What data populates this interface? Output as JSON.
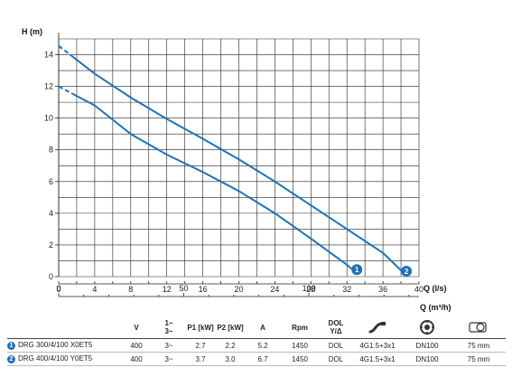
{
  "chart_data": {
    "type": "line",
    "ylabel": "H (m)",
    "xlabel": "Q (l/s)",
    "xlabel2": "Q (m³/h)",
    "xlim": [
      0,
      40
    ],
    "ylim": [
      0,
      15
    ],
    "x_ticks": [
      "0",
      "4",
      "8",
      "12",
      "16",
      "20",
      "24",
      "28",
      "32",
      "36",
      "40"
    ],
    "y_ticks": [
      "0",
      "2",
      "4",
      "6",
      "8",
      "10",
      "12",
      "14"
    ],
    "x2_ticks": [
      "0",
      "50",
      "100"
    ],
    "grid": true,
    "series": [
      {
        "name": "1",
        "color": "#1d72b8",
        "dashed_x": [
          0,
          1.5
        ],
        "x": [
          1.5,
          4,
          8,
          12,
          16,
          20,
          24,
          28,
          32,
          32.5
        ],
        "y": [
          11.55,
          10.8,
          9.0,
          7.7,
          6.6,
          5.4,
          4.0,
          2.4,
          0.75,
          0.5
        ]
      },
      {
        "name": "2",
        "color": "#1d72b8",
        "dashed_x": [
          0,
          1.5
        ],
        "x": [
          1.5,
          4,
          8,
          12,
          16,
          20,
          24,
          28,
          32,
          36,
          38
        ],
        "y": [
          13.9,
          12.8,
          11.3,
          9.95,
          8.7,
          7.4,
          6.0,
          4.5,
          3.0,
          1.5,
          0.4
        ]
      }
    ]
  },
  "table": {
    "headers": {
      "v": "V",
      "phase_top": "1~",
      "phase_bottom": "3~",
      "p1": "P1 [kW]",
      "p2": "P2 [kW]",
      "a": "A",
      "rpm": "Rpm",
      "dol_top": "DOL",
      "dol_bottom": "Y/Δ"
    },
    "icons": [
      "cable-icon",
      "outlet-flange-icon",
      "impeller-passage-icon"
    ],
    "rows": [
      {
        "num": "1",
        "model": "DRG 300/4/100 X0ET5",
        "v": "400",
        "phase": "3~",
        "p1": "2.7",
        "p2": "2.2",
        "a": "5.2",
        "rpm": "1450",
        "start": "DOL",
        "cable": "4G1.5+3x1",
        "outlet": "DN100",
        "passage": "75 mm"
      },
      {
        "num": "2",
        "model": "DRG 400/4/100 Y0ET5",
        "v": "400",
        "phase": "3~",
        "p1": "3.7",
        "p2": "3.0",
        "a": "6.7",
        "rpm": "1450",
        "start": "DOL",
        "cable": "4G1.5+3x1",
        "outlet": "DN100",
        "passage": "75 mm"
      }
    ]
  },
  "colors": {
    "accent": "#1d72b8",
    "grid": "#222222"
  }
}
